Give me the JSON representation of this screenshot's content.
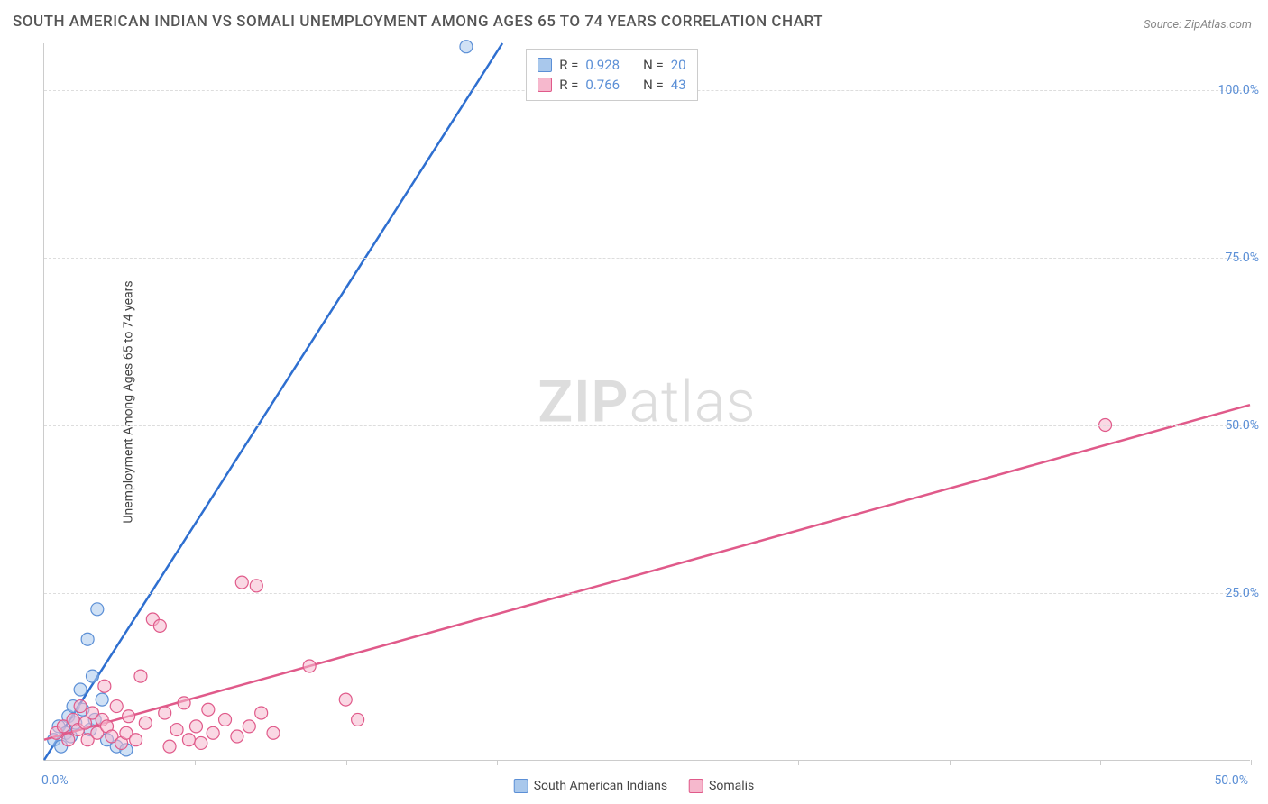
{
  "title": "SOUTH AMERICAN INDIAN VS SOMALI UNEMPLOYMENT AMONG AGES 65 TO 74 YEARS CORRELATION CHART",
  "source": "Source: ZipAtlas.com",
  "y_axis_label": "Unemployment Among Ages 65 to 74 years",
  "watermark_bold": "ZIP",
  "watermark_light": "atlas",
  "chart": {
    "type": "scatter",
    "xlim": [
      0,
      50
    ],
    "ylim": [
      0,
      107
    ],
    "x_ticks": [
      0,
      6.25,
      12.5,
      18.75,
      25,
      31.25,
      37.5,
      43.75,
      50
    ],
    "y_gridlines": [
      25,
      50,
      75,
      100
    ],
    "y_tick_labels": [
      "25.0%",
      "50.0%",
      "75.0%",
      "100.0%"
    ],
    "x_origin_label": "0.0%",
    "x_end_label": "50.0%",
    "background_color": "#ffffff",
    "grid_color": "#dddddd",
    "axis_color": "#cccccc",
    "tick_label_color": "#5b8fd6",
    "series": [
      {
        "name": "South American Indians",
        "marker_fill": "#a9c8ec",
        "marker_stroke": "#5b8fd6",
        "marker_fill_opacity": 0.55,
        "marker_radius": 7,
        "line_color": "#2e6fd0",
        "line_width": 2.5,
        "R": "0.928",
        "N": "20",
        "trend": {
          "x1": 0,
          "y1": 0,
          "x2": 19,
          "y2": 107
        },
        "points": [
          [
            0.4,
            3.0
          ],
          [
            0.6,
            5.0
          ],
          [
            0.7,
            2.0
          ],
          [
            0.9,
            4.0
          ],
          [
            1.0,
            6.5
          ],
          [
            1.1,
            3.5
          ],
          [
            1.2,
            8.0
          ],
          [
            1.3,
            5.5
          ],
          [
            1.5,
            10.5
          ],
          [
            1.6,
            7.5
          ],
          [
            1.8,
            18.0
          ],
          [
            1.9,
            4.5
          ],
          [
            2.0,
            12.5
          ],
          [
            2.1,
            6.0
          ],
          [
            2.2,
            22.5
          ],
          [
            2.4,
            9.0
          ],
          [
            2.6,
            3.0
          ],
          [
            3.0,
            2.0
          ],
          [
            3.4,
            1.5
          ],
          [
            17.5,
            106.5
          ]
        ]
      },
      {
        "name": "Somalis",
        "marker_fill": "#f6b8cd",
        "marker_stroke": "#e05a8a",
        "marker_fill_opacity": 0.55,
        "marker_radius": 7,
        "line_color": "#e05a8a",
        "line_width": 2.5,
        "R": "0.766",
        "N": "43",
        "trend": {
          "x1": 0,
          "y1": 3,
          "x2": 50,
          "y2": 53
        },
        "points": [
          [
            0.5,
            4.0
          ],
          [
            0.8,
            5.0
          ],
          [
            1.0,
            3.0
          ],
          [
            1.2,
            6.0
          ],
          [
            1.4,
            4.5
          ],
          [
            1.5,
            8.0
          ],
          [
            1.7,
            5.5
          ],
          [
            1.8,
            3.0
          ],
          [
            2.0,
            7.0
          ],
          [
            2.2,
            4.0
          ],
          [
            2.4,
            6.0
          ],
          [
            2.5,
            11.0
          ],
          [
            2.6,
            5.0
          ],
          [
            2.8,
            3.5
          ],
          [
            3.0,
            8.0
          ],
          [
            3.2,
            2.5
          ],
          [
            3.4,
            4.0
          ],
          [
            3.5,
            6.5
          ],
          [
            3.8,
            3.0
          ],
          [
            4.0,
            12.5
          ],
          [
            4.2,
            5.5
          ],
          [
            4.5,
            21.0
          ],
          [
            4.8,
            20.0
          ],
          [
            5.0,
            7.0
          ],
          [
            5.2,
            2.0
          ],
          [
            5.5,
            4.5
          ],
          [
            5.8,
            8.5
          ],
          [
            6.0,
            3.0
          ],
          [
            6.3,
            5.0
          ],
          [
            6.5,
            2.5
          ],
          [
            6.8,
            7.5
          ],
          [
            7.0,
            4.0
          ],
          [
            7.5,
            6.0
          ],
          [
            8.0,
            3.5
          ],
          [
            8.2,
            26.5
          ],
          [
            8.5,
            5.0
          ],
          [
            8.8,
            26.0
          ],
          [
            9.0,
            7.0
          ],
          [
            9.5,
            4.0
          ],
          [
            11.0,
            14.0
          ],
          [
            12.5,
            9.0
          ],
          [
            13.0,
            6.0
          ],
          [
            44.0,
            50.0
          ]
        ]
      }
    ]
  },
  "legend_top": {
    "R_label": "R =",
    "N_label": "N ="
  },
  "legend_bottom": {
    "items": [
      {
        "label": "South American Indians",
        "fill": "#a9c8ec",
        "stroke": "#5b8fd6"
      },
      {
        "label": "Somalis",
        "fill": "#f6b8cd",
        "stroke": "#e05a8a"
      }
    ]
  }
}
